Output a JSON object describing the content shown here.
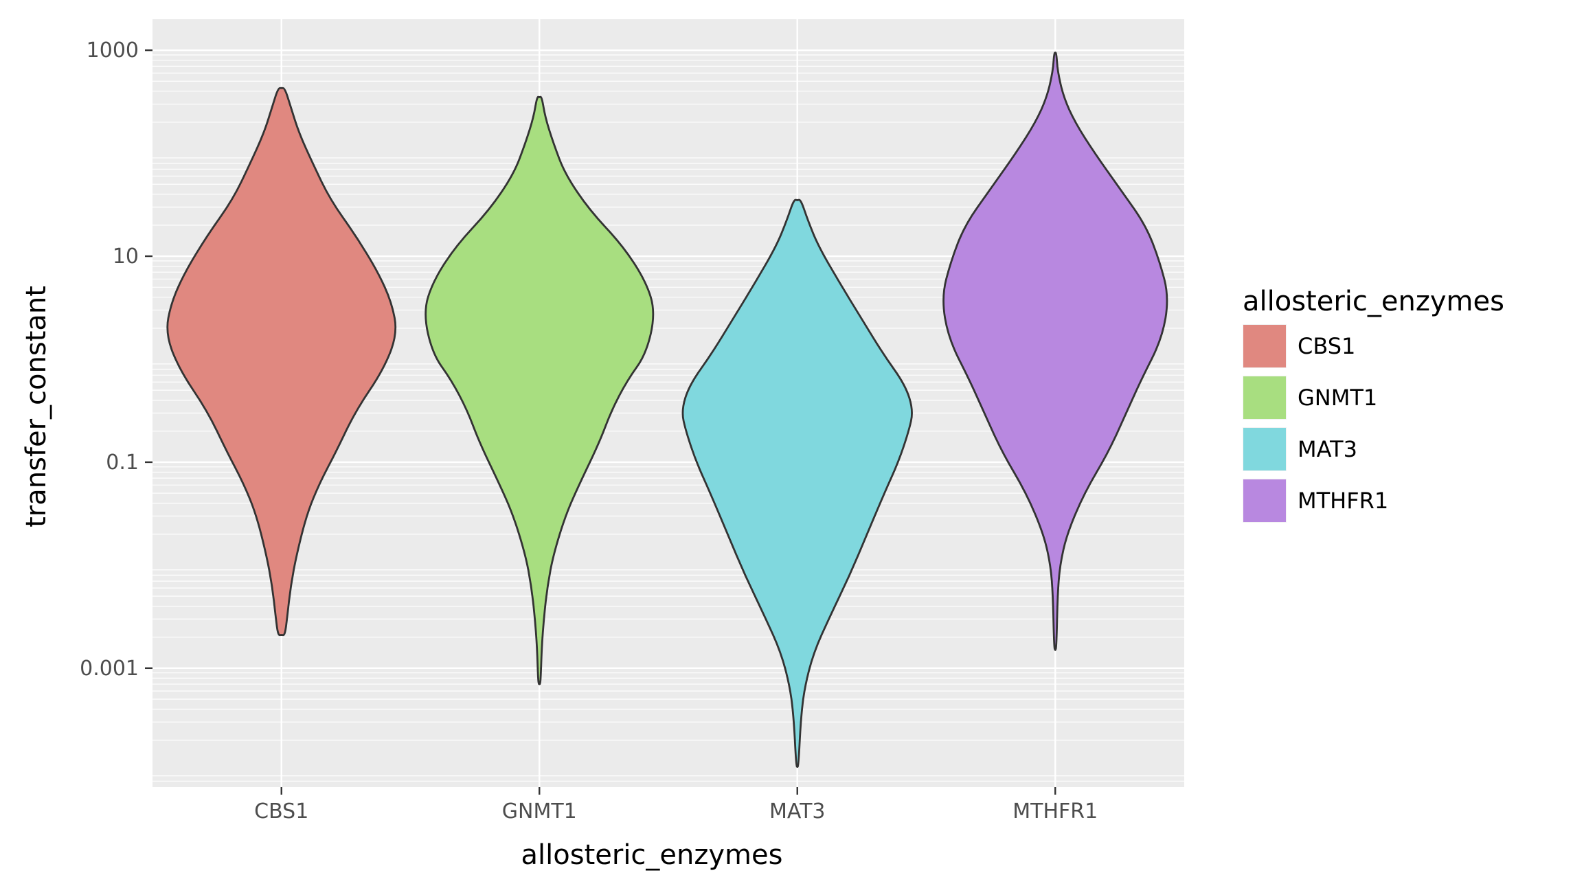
{
  "chart_data": {
    "type": "violin",
    "xlabel": "allosteric_enzymes",
    "ylabel": "transfer_constant",
    "y_scale": "log10",
    "ylim": [
      7e-05,
      2000
    ],
    "y_ticks": [
      {
        "value": 0.001,
        "label": "0.001"
      },
      {
        "value": 0.1,
        "label": "0.1"
      },
      {
        "value": 10,
        "label": "10"
      },
      {
        "value": 1000,
        "label": "1000"
      }
    ],
    "categories": [
      "CBS1",
      "GNMT1",
      "MAT3",
      "MTHFR1"
    ],
    "legend": {
      "title": "allosteric_enzymes",
      "position": "right"
    },
    "grid": true,
    "series": [
      {
        "name": "CBS1",
        "color": "#E08880",
        "min": 0.0021,
        "max": 430,
        "profile": [
          [
            -2.68,
            0.03
          ],
          [
            -2.5,
            0.05
          ],
          [
            -2.2,
            0.08
          ],
          [
            -1.9,
            0.13
          ],
          [
            -1.5,
            0.22
          ],
          [
            -1.2,
            0.33
          ],
          [
            -0.9,
            0.47
          ],
          [
            -0.5,
            0.64
          ],
          [
            -0.1,
            0.88
          ],
          [
            0.25,
            1.0
          ],
          [
            0.55,
            0.95
          ],
          [
            0.85,
            0.83
          ],
          [
            1.2,
            0.64
          ],
          [
            1.55,
            0.42
          ],
          [
            1.9,
            0.27
          ],
          [
            2.2,
            0.15
          ],
          [
            2.45,
            0.08
          ],
          [
            2.63,
            0.03
          ]
        ]
      },
      {
        "name": "GNMT1",
        "color": "#A8DE80",
        "min": 0.0007,
        "max": 350,
        "profile": [
          [
            -3.15,
            0.01
          ],
          [
            -2.8,
            0.02
          ],
          [
            -2.5,
            0.04
          ],
          [
            -2.2,
            0.07
          ],
          [
            -1.9,
            0.12
          ],
          [
            -1.5,
            0.23
          ],
          [
            -1.2,
            0.35
          ],
          [
            -0.8,
            0.52
          ],
          [
            -0.5,
            0.62
          ],
          [
            -0.2,
            0.76
          ],
          [
            0.05,
            0.92
          ],
          [
            0.45,
            1.0
          ],
          [
            0.75,
            0.92
          ],
          [
            1.1,
            0.72
          ],
          [
            1.45,
            0.43
          ],
          [
            1.8,
            0.22
          ],
          [
            2.1,
            0.12
          ],
          [
            2.35,
            0.05
          ],
          [
            2.55,
            0.02
          ]
        ]
      },
      {
        "name": "MAT3",
        "color": "#80D8DE",
        "min": 0.00011,
        "max": 35,
        "profile": [
          [
            -3.95,
            0.01
          ],
          [
            -3.5,
            0.03
          ],
          [
            -3.2,
            0.06
          ],
          [
            -2.85,
            0.14
          ],
          [
            -2.5,
            0.28
          ],
          [
            -2.1,
            0.45
          ],
          [
            -1.7,
            0.6
          ],
          [
            -1.3,
            0.75
          ],
          [
            -1.0,
            0.87
          ],
          [
            -0.7,
            0.96
          ],
          [
            -0.5,
            1.0
          ],
          [
            -0.25,
            0.93
          ],
          [
            0.05,
            0.74
          ],
          [
            0.4,
            0.55
          ],
          [
            0.75,
            0.36
          ],
          [
            1.1,
            0.18
          ],
          [
            1.35,
            0.09
          ],
          [
            1.55,
            0.03
          ]
        ]
      },
      {
        "name": "MTHFR1",
        "color": "#B888E0",
        "min": 0.0015,
        "max": 950,
        "profile": [
          [
            -2.8,
            0.01
          ],
          [
            -2.3,
            0.02
          ],
          [
            -2.0,
            0.04
          ],
          [
            -1.7,
            0.1
          ],
          [
            -1.3,
            0.25
          ],
          [
            -0.9,
            0.46
          ],
          [
            -0.5,
            0.62
          ],
          [
            -0.2,
            0.74
          ],
          [
            0.2,
            0.92
          ],
          [
            0.6,
            0.98
          ],
          [
            0.95,
            0.9
          ],
          [
            1.3,
            0.78
          ],
          [
            1.65,
            0.56
          ],
          [
            2.0,
            0.34
          ],
          [
            2.3,
            0.17
          ],
          [
            2.55,
            0.07
          ],
          [
            2.8,
            0.02
          ],
          [
            2.97,
            0.01
          ]
        ]
      }
    ]
  }
}
